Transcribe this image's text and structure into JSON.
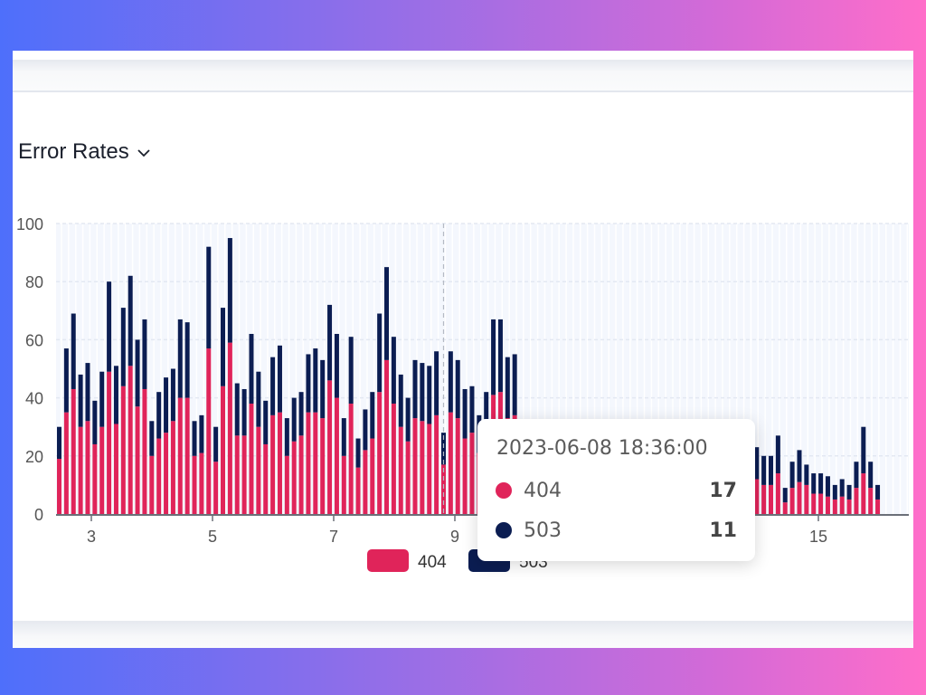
{
  "header": {
    "title": "Error Rates",
    "title_icon": "chevron-down-icon"
  },
  "colors": {
    "s404": "#e0245a",
    "s503": "#0b1d52",
    "grid": "#e3e8f2",
    "plot_bg": "#f4f7fd"
  },
  "chart_data": {
    "type": "bar",
    "stacked": true,
    "title": "",
    "xlabel": "",
    "ylabel": "",
    "ylim": [
      0,
      100
    ],
    "yticks": [
      "0",
      "20",
      "40",
      "60",
      "80",
      "100"
    ],
    "xticks": [
      {
        "value": 3,
        "label": "3"
      },
      {
        "value": 5,
        "label": "5"
      },
      {
        "value": 7,
        "label": "7"
      },
      {
        "value": 9,
        "label": "9"
      },
      {
        "value": 15,
        "label": "15"
      }
    ],
    "grid": true,
    "legend": "bottom-center",
    "series": [
      {
        "name": "404",
        "values": [
          19,
          35,
          43,
          30,
          32,
          24,
          30,
          49,
          31,
          44,
          51,
          37,
          43,
          20,
          26,
          28,
          32,
          40,
          40,
          20,
          21,
          57,
          18,
          44,
          59,
          27,
          27,
          38,
          30,
          24,
          34,
          35,
          20,
          25,
          27,
          35,
          35,
          33,
          46,
          40,
          20,
          38,
          16,
          22,
          26,
          42,
          53,
          38,
          30,
          25,
          33,
          32,
          31,
          34,
          17,
          35,
          33,
          26,
          28,
          21,
          26,
          41,
          42,
          33,
          34,
          null,
          null,
          null,
          null,
          null,
          null,
          null,
          null,
          null,
          null,
          null,
          null,
          null,
          null,
          null,
          null,
          null,
          null,
          null,
          null,
          null,
          null,
          null,
          null,
          null,
          null,
          null,
          null,
          null,
          null,
          null,
          null,
          null,
          12,
          10,
          10,
          14,
          4,
          9,
          11,
          10,
          7,
          7,
          6,
          5,
          6,
          5,
          9,
          14,
          9,
          5
        ]
      },
      {
        "name": "503",
        "values": [
          11,
          22,
          26,
          18,
          20,
          15,
          19,
          31,
          20,
          27,
          31,
          23,
          24,
          12,
          16,
          19,
          18,
          27,
          26,
          12,
          13,
          35,
          12,
          27,
          36,
          18,
          16,
          24,
          19,
          15,
          20,
          23,
          13,
          15,
          15,
          20,
          22,
          20,
          26,
          22,
          13,
          23,
          10,
          14,
          16,
          27,
          32,
          23,
          18,
          15,
          20,
          20,
          20,
          22,
          11,
          21,
          20,
          17,
          16,
          13,
          16,
          26,
          25,
          21,
          21,
          null,
          null,
          null,
          null,
          null,
          null,
          null,
          null,
          null,
          null,
          null,
          null,
          null,
          null,
          null,
          null,
          null,
          null,
          null,
          null,
          null,
          null,
          null,
          null,
          null,
          null,
          null,
          null,
          null,
          null,
          null,
          null,
          null,
          11,
          10,
          10,
          13,
          5,
          9,
          11,
          7,
          7,
          7,
          7,
          5,
          6,
          5,
          9,
          16,
          9,
          5
        ]
      }
    ],
    "hover_index": 54
  },
  "tooltip": {
    "time": "2023-06-08 18:36:00",
    "rows": [
      {
        "label": "404",
        "value": "17"
      },
      {
        "label": "503",
        "value": "11"
      }
    ]
  },
  "legend": {
    "items": [
      {
        "label": "404"
      },
      {
        "label": "503"
      }
    ]
  }
}
